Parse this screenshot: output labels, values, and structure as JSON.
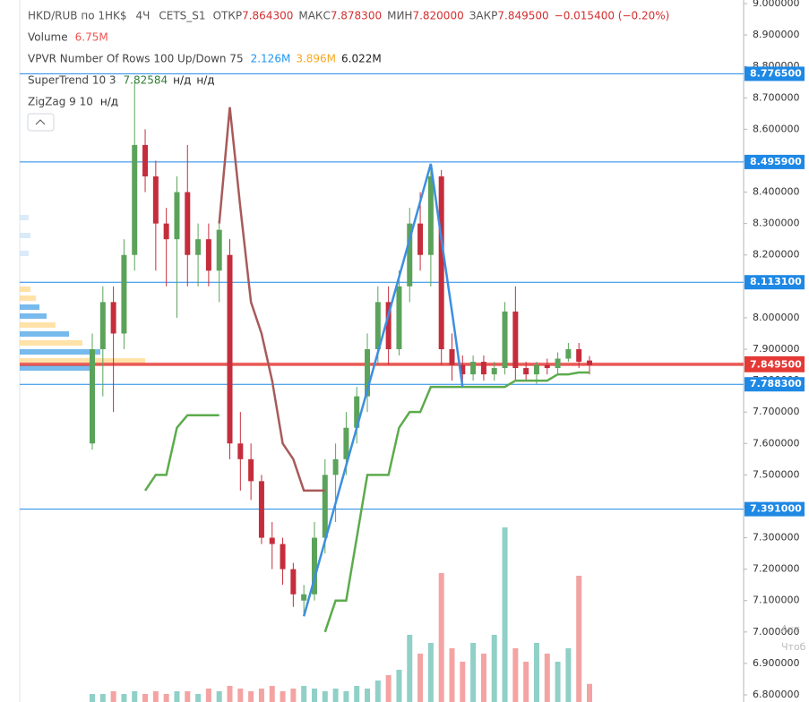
{
  "chart_data": {
    "type": "candlestick",
    "legend": {
      "symbol": "HKD/RUB по 1HK$",
      "interval": "4Ч",
      "exchange": "CETS_S1",
      "ohlc": [
        {
          "label": "ОТКР",
          "value": "7.864300"
        },
        {
          "label": "МАКС",
          "value": "7.878300"
        },
        {
          "label": "МИН",
          "value": "7.820000"
        },
        {
          "label": "ЗАКР",
          "value": "7.849500"
        }
      ],
      "change": "−0.015400 (−0.20%)",
      "studies": [
        {
          "name": "Volume",
          "values": [
            {
              "text": "6.75M",
              "color": "#ef5350"
            }
          ]
        },
        {
          "name": "VPVR Number Of Rows 100 Up/Down 75",
          "values": [
            {
              "text": "2.126M",
              "color": "#2196f3"
            },
            {
              "text": "3.896M",
              "color": "#f9a825"
            },
            {
              "text": "6.022M",
              "color": "#222222"
            }
          ]
        },
        {
          "name": "SuperTrend 10 3",
          "values": [
            {
              "text": "7.82584",
              "color": "#2e7d32"
            },
            {
              "text": "н/д",
              "color": "#222222"
            },
            {
              "text": "н/д",
              "color": "#222222"
            }
          ]
        },
        {
          "name": "ZigZag 9 10",
          "values": [
            {
              "text": "н/д",
              "color": "#222222"
            }
          ]
        }
      ]
    },
    "watermark": [
      "Акт",
      "Чтоб"
    ],
    "ylim": [
      6.8,
      9.0
    ],
    "yticks": [
      {
        "value": 9.0,
        "label": "9.000000"
      },
      {
        "value": 8.9,
        "label": "8.900000"
      },
      {
        "value": 8.8,
        "label": "8.800000"
      },
      {
        "value": 8.7,
        "label": "8.700000"
      },
      {
        "value": 8.6,
        "label": "8.600000"
      },
      {
        "value": 8.5,
        "label": "8.500000"
      },
      {
        "value": 8.4,
        "label": "8.400000"
      },
      {
        "value": 8.3,
        "label": "8.300000"
      },
      {
        "value": 8.2,
        "label": "8.200000"
      },
      {
        "value": 8.1,
        "label": "8.100000"
      },
      {
        "value": 8.0,
        "label": "8.000000"
      },
      {
        "value": 7.9,
        "label": "7.900000"
      },
      {
        "value": 7.8,
        "label": "7.800000"
      },
      {
        "value": 7.7,
        "label": "7.700000"
      },
      {
        "value": 7.6,
        "label": "7.600000"
      },
      {
        "value": 7.5,
        "label": "7.500000"
      },
      {
        "value": 7.4,
        "label": "7.400000"
      },
      {
        "value": 7.3,
        "label": "7.300000"
      },
      {
        "value": 7.2,
        "label": "7.200000"
      },
      {
        "value": 7.1,
        "label": "7.100000"
      },
      {
        "value": 7.0,
        "label": "7.000000"
      },
      {
        "value": 6.9,
        "label": "6.900000"
      },
      {
        "value": 6.8,
        "label": "6.800000"
      }
    ],
    "price_lines": [
      {
        "value": 8.7765,
        "label": "8.776500",
        "color": "#1e88e5"
      },
      {
        "value": 8.4959,
        "label": "8.495900",
        "color": "#1e88e5"
      },
      {
        "value": 8.1131,
        "label": "8.113100",
        "color": "#1e88e5"
      },
      {
        "value": 7.8547,
        "label": "7.854700",
        "color": "#e53935"
      },
      {
        "value": 7.8495,
        "label": "7.849500",
        "color": "#e53935"
      },
      {
        "value": 7.7883,
        "label": "7.788300",
        "color": "#1e88e5"
      },
      {
        "value": 7.391,
        "label": "7.391000",
        "color": "#1e88e5"
      }
    ],
    "up_color": "#5ba35b",
    "down_color": "#c62d3c",
    "open": [
      7.6,
      7.9,
      8.05,
      7.95,
      8.2,
      8.55,
      8.45,
      8.3,
      8.25,
      8.4,
      8.2,
      8.25,
      8.15,
      8.2,
      7.6,
      7.55,
      7.48,
      7.3,
      7.28,
      7.2,
      7.1,
      7.12,
      7.3,
      7.5,
      7.55,
      7.65,
      7.75,
      7.9,
      8.05,
      7.9,
      8.1,
      8.3,
      8.2,
      8.45,
      7.9,
      7.85,
      7.82,
      7.86,
      7.82,
      7.84,
      8.02,
      7.84,
      7.82,
      7.85,
      7.84,
      7.87,
      7.9,
      7.864
    ],
    "high": [
      7.95,
      8.1,
      8.1,
      8.25,
      8.75,
      8.6,
      8.5,
      8.35,
      8.45,
      8.55,
      8.3,
      8.3,
      8.3,
      8.25,
      7.7,
      7.6,
      7.5,
      7.35,
      7.3,
      7.22,
      7.15,
      7.35,
      7.55,
      7.6,
      7.7,
      7.78,
      7.95,
      8.1,
      8.1,
      8.15,
      8.35,
      8.4,
      8.48,
      8.47,
      7.95,
      7.88,
      7.88,
      7.88,
      7.86,
      8.05,
      8.1,
      7.86,
      7.86,
      7.87,
      7.89,
      7.92,
      7.92,
      7.8783
    ],
    "low": [
      7.58,
      7.75,
      7.7,
      7.9,
      8.15,
      8.4,
      8.15,
      8.1,
      8.0,
      8.1,
      8.1,
      8.1,
      8.05,
      7.55,
      7.45,
      7.42,
      7.28,
      7.2,
      7.15,
      7.08,
      7.05,
      7.1,
      7.25,
      7.35,
      7.5,
      7.6,
      7.7,
      7.85,
      7.85,
      7.88,
      8.05,
      8.15,
      8.1,
      7.85,
      7.8,
      7.78,
      7.8,
      7.8,
      7.8,
      7.82,
      7.8,
      7.8,
      7.79,
      7.82,
      7.82,
      7.86,
      7.84,
      7.82
    ],
    "close": [
      7.9,
      8.05,
      7.95,
      8.2,
      8.55,
      8.45,
      8.3,
      8.25,
      8.4,
      8.2,
      8.25,
      8.15,
      8.28,
      7.6,
      7.55,
      7.48,
      7.3,
      7.28,
      7.2,
      7.12,
      7.12,
      7.3,
      7.5,
      7.55,
      7.65,
      7.75,
      7.9,
      8.05,
      7.9,
      8.1,
      8.3,
      8.2,
      8.45,
      7.9,
      7.85,
      7.82,
      7.86,
      7.82,
      7.84,
      8.02,
      7.84,
      7.82,
      7.85,
      7.84,
      7.87,
      7.9,
      7.86,
      7.8495
    ],
    "volume": {
      "values": [
        3,
        3,
        4,
        3,
        4,
        3,
        4,
        3,
        4,
        4,
        3,
        5,
        4,
        6,
        5,
        4,
        5,
        6,
        4,
        5,
        6,
        5,
        4,
        5,
        4,
        6,
        5,
        8,
        10,
        12,
        25,
        18,
        22,
        48,
        20,
        15,
        22,
        18,
        25,
        65,
        20,
        15,
        22,
        18,
        15,
        20,
        47,
        6.75
      ],
      "ylim": [
        0,
        70
      ],
      "up_color": "#8fd0c7",
      "down_color": "#f4a3a3"
    },
    "lines": [
      {
        "color": "#5cab4d",
        "values": [
          null,
          null,
          null,
          null,
          null,
          7.45,
          7.5,
          7.5,
          7.65,
          7.69,
          7.69,
          7.69,
          7.69,
          null,
          null,
          null,
          null,
          null,
          null,
          null,
          null,
          null,
          7.0,
          7.1,
          7.1,
          7.3,
          7.5,
          7.5,
          7.5,
          7.65,
          7.7,
          7.7,
          7.78,
          7.78,
          7.78,
          7.78,
          7.78,
          7.78,
          7.78,
          7.78,
          7.8,
          7.8,
          7.8,
          7.8,
          7.82,
          7.82,
          7.826,
          7.826
        ]
      },
      {
        "color": "#a85a5a",
        "values": [
          null,
          null,
          null,
          null,
          null,
          null,
          null,
          null,
          null,
          null,
          null,
          null,
          8.3,
          8.67,
          8.35,
          8.05,
          7.95,
          7.8,
          7.6,
          7.55,
          7.45,
          7.45,
          7.45,
          null,
          null,
          null,
          null,
          null,
          null,
          null,
          null,
          null,
          null,
          null,
          null,
          null,
          null,
          null,
          null,
          null,
          null,
          null,
          null,
          null,
          null,
          null,
          null,
          null
        ]
      },
      {
        "color": "#3c8fe0",
        "values": [
          null,
          null,
          null,
          null,
          null,
          null,
          null,
          null,
          null,
          null,
          null,
          null,
          null,
          null,
          null,
          null,
          null,
          null,
          null,
          null,
          7.05,
          7.17,
          7.29,
          7.41,
          7.53,
          7.65,
          7.77,
          7.89,
          8.01,
          8.13,
          8.25,
          8.37,
          8.49,
          8.25,
          8.02,
          7.78,
          null,
          null,
          null,
          null,
          null,
          null,
          null,
          null,
          null,
          null,
          null,
          null
        ]
      }
    ]
  }
}
